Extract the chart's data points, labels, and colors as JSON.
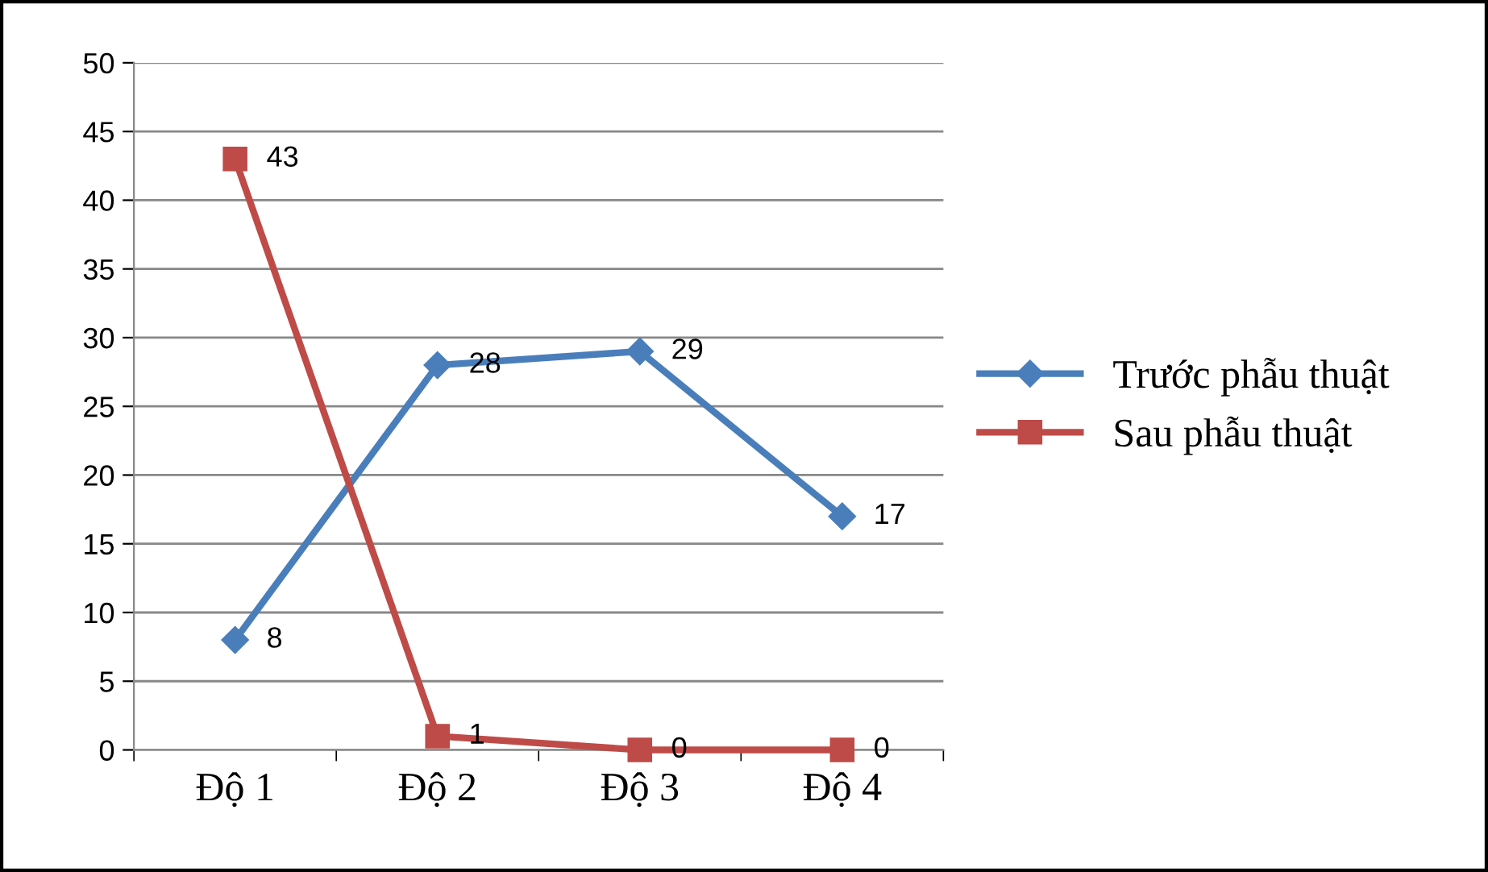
{
  "chart_data": {
    "type": "line",
    "categories": [
      "Độ 1",
      "Độ 2",
      "Độ 3",
      "Độ 4"
    ],
    "series": [
      {
        "name": "Trước phẫu thuật",
        "color": "#4a7ebb",
        "marker": "diamond",
        "values": [
          8,
          28,
          29,
          17
        ]
      },
      {
        "name": "Sau phẫu thuật",
        "color": "#be4b48",
        "marker": "square",
        "values": [
          43,
          1,
          0,
          0
        ]
      }
    ],
    "ylim": [
      0,
      50
    ],
    "yticks": [
      0,
      5,
      10,
      15,
      20,
      25,
      30,
      35,
      40,
      45,
      50
    ],
    "grid": "y",
    "legend": "right",
    "data_labels": true,
    "line_style": "solid"
  }
}
